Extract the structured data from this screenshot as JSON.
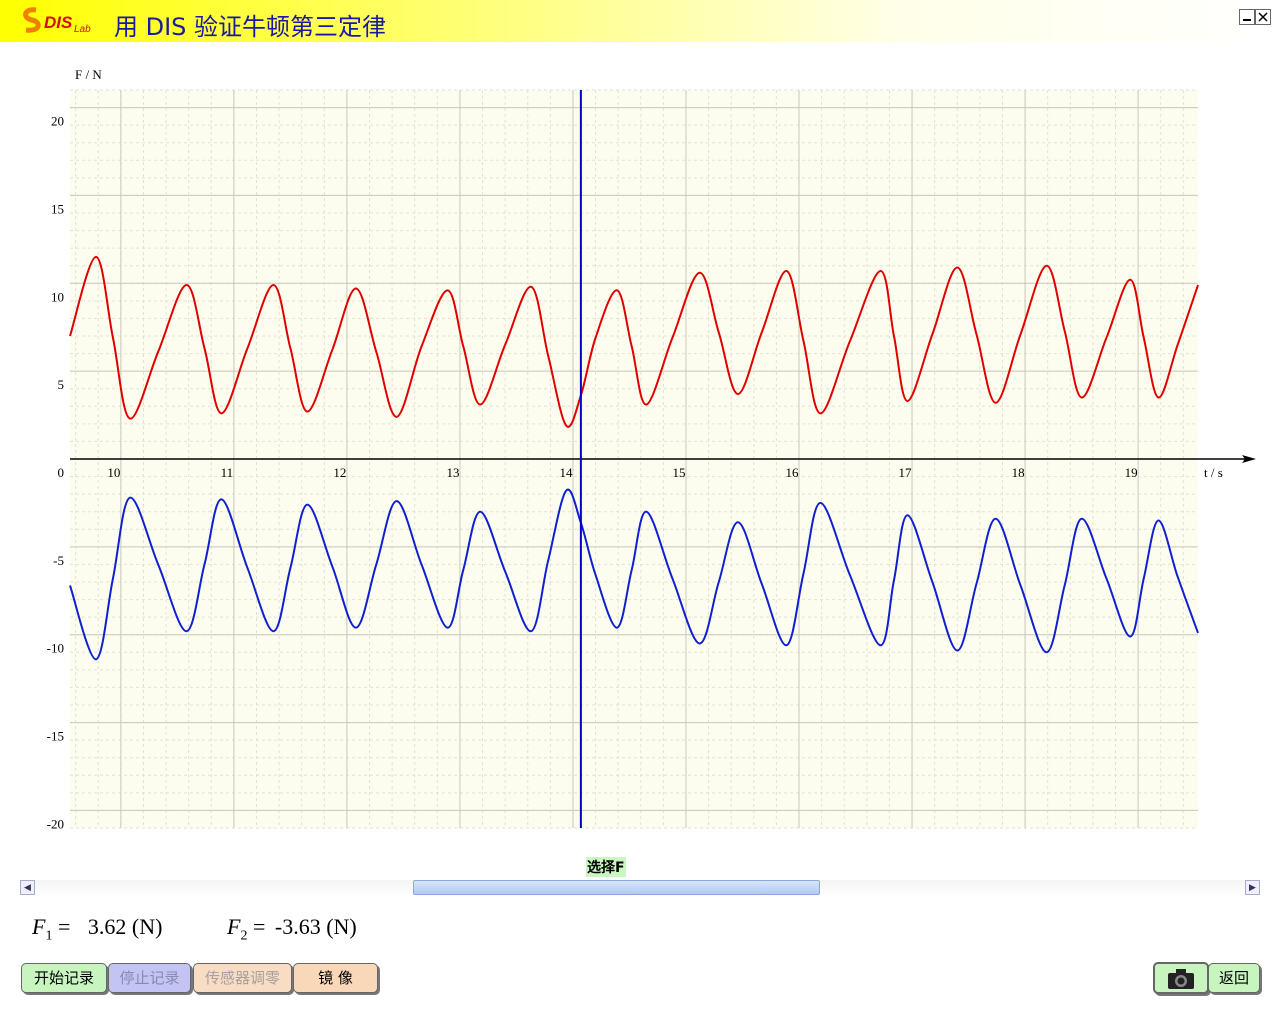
{
  "header": {
    "logo_main": "DIS",
    "logo_sub": "Lab",
    "title": "用 DIS 验证牛顿第三定律"
  },
  "chart_data": {
    "type": "line",
    "y_label": "F / N",
    "x_label": "t / s",
    "xlim": [
      9.55,
      19.53
    ],
    "ylim": [
      -21,
      21
    ],
    "xticks": [
      10,
      11,
      12,
      13,
      14,
      15,
      16,
      17,
      18,
      19
    ],
    "yticks": [
      -20,
      -15,
      -10,
      -5,
      0,
      5,
      10,
      15,
      20
    ],
    "grid": true,
    "cursor_x": 14.07,
    "cursor_color": "#0000cc",
    "x": [
      9.55,
      9.78,
      9.93,
      10.08,
      10.33,
      10.58,
      10.74,
      10.89,
      11.12,
      11.35,
      11.5,
      11.65,
      11.87,
      12.08,
      12.26,
      12.44,
      12.66,
      12.89,
      13.03,
      13.18,
      13.4,
      13.63,
      13.78,
      13.94,
      14.07,
      14.2,
      14.39,
      14.52,
      14.65,
      14.88,
      15.12,
      15.29,
      15.46,
      15.67,
      15.89,
      16.04,
      16.19,
      16.45,
      16.72,
      16.84,
      16.96,
      17.18,
      17.4,
      17.57,
      17.74,
      17.96,
      18.19,
      18.35,
      18.5,
      18.72,
      18.93,
      19.05,
      19.18,
      19.35,
      19.53
    ],
    "series": [
      {
        "color": "#e00000",
        "values": [
          7.0,
          11.5,
          6.9,
          2.3,
          6.1,
          9.9,
          6.3,
          2.6,
          6.3,
          9.9,
          6.3,
          2.7,
          6.2,
          9.7,
          6.1,
          2.4,
          6.4,
          9.6,
          6.4,
          3.1,
          6.5,
          9.8,
          5.9,
          1.9,
          3.62,
          6.9,
          9.6,
          6.4,
          3.1,
          6.9,
          10.6,
          7.2,
          3.7,
          7.2,
          10.7,
          6.7,
          2.6,
          6.7,
          10.7,
          7.0,
          3.3,
          7.1,
          10.9,
          7.1,
          3.2,
          7.1,
          11.0,
          7.3,
          3.5,
          6.9,
          10.2,
          6.9,
          3.5,
          6.5,
          9.9
        ]
      },
      {
        "color": "#1020d0",
        "values": [
          -7.2,
          -11.4,
          -6.8,
          -2.2,
          -6.0,
          -9.8,
          -6.0,
          -2.3,
          -6.2,
          -9.8,
          -6.2,
          -2.6,
          -6.1,
          -9.6,
          -6.0,
          -2.4,
          -6.0,
          -9.6,
          -6.3,
          -3.0,
          -6.4,
          -9.8,
          -5.8,
          -1.8,
          -3.63,
          -6.6,
          -9.6,
          -6.3,
          -3.0,
          -6.8,
          -10.5,
          -7.0,
          -3.6,
          -7.1,
          -10.6,
          -6.5,
          -2.5,
          -6.6,
          -10.6,
          -6.9,
          -3.2,
          -7.0,
          -10.9,
          -7.1,
          -3.4,
          -7.2,
          -11.0,
          -7.2,
          -3.4,
          -6.8,
          -10.1,
          -6.8,
          -3.5,
          -6.7,
          -9.9
        ]
      }
    ]
  },
  "selector_label": "选择F",
  "readout": [
    {
      "symbol": "F",
      "subscript": "1",
      "equals": "=",
      "value": 3.62,
      "unit": "(N)"
    },
    {
      "symbol": "F",
      "subscript": "2",
      "equals": "=",
      "value": -3.63,
      "unit": "(N)"
    }
  ],
  "buttons": {
    "start": "开始记录",
    "stop": "停止记录",
    "zero": "传感器调零",
    "mirror": "镜 像",
    "back": "返回"
  }
}
